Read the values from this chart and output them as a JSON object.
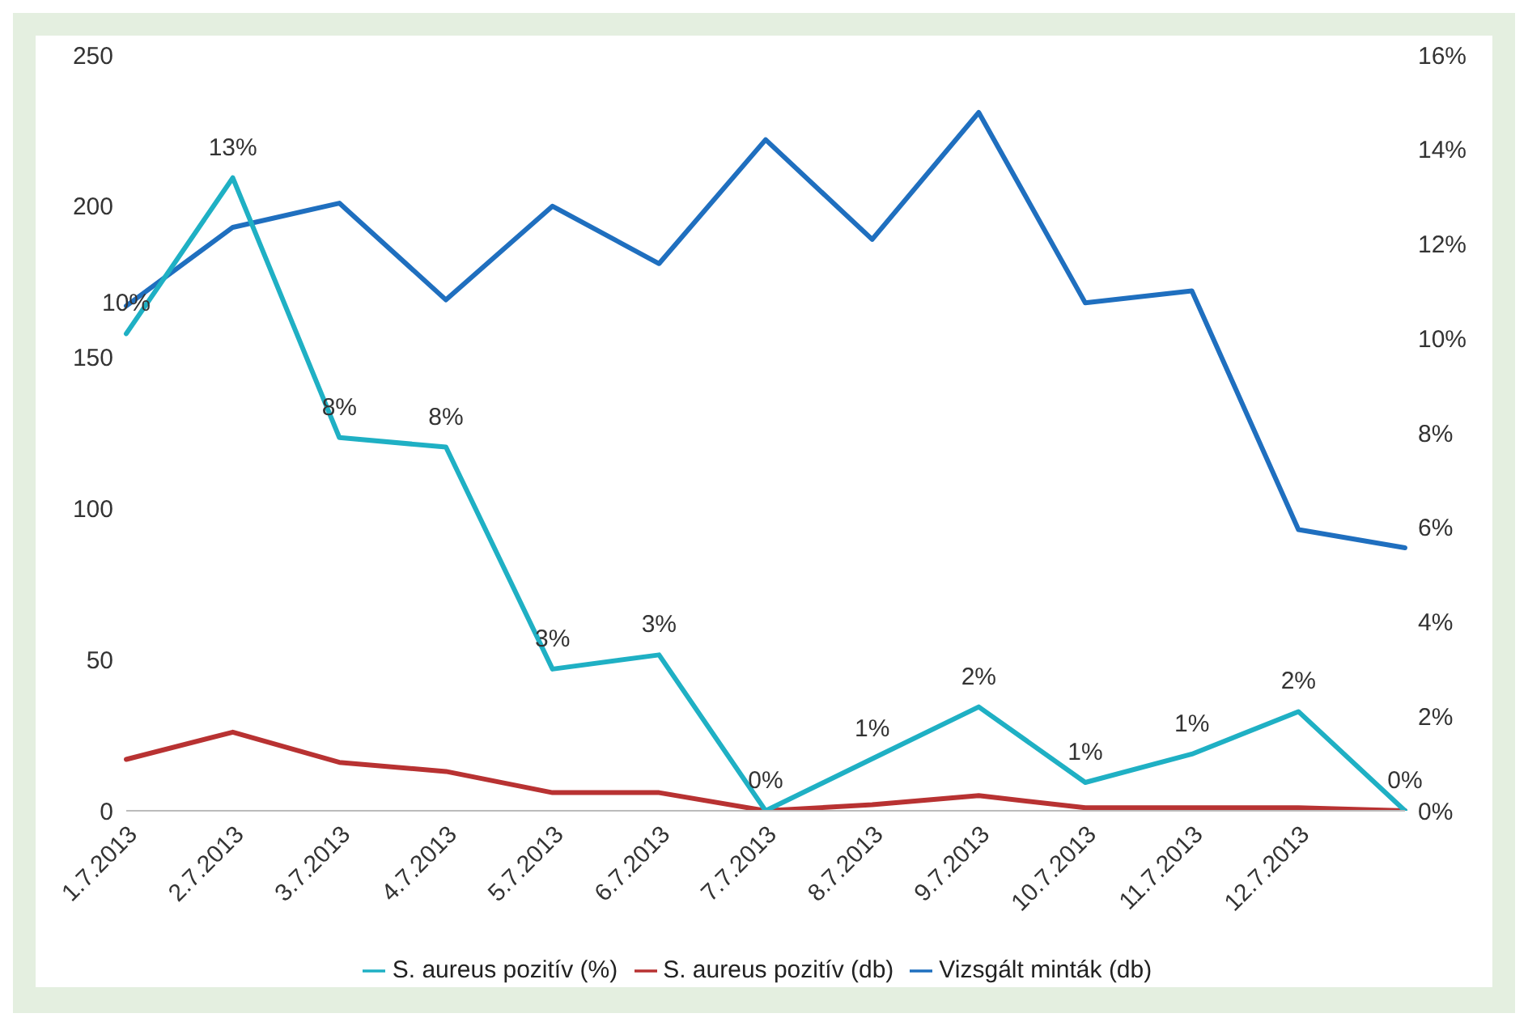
{
  "chart_data": {
    "type": "line",
    "categories": [
      "1.7.2013",
      "2.7.2013",
      "3.7.2013",
      "4.7.2013",
      "5.7.2013",
      "6.7.2013",
      "7.7.2013",
      "8.7.2013",
      "9.7.2013",
      "10.7.2013",
      "11.7.2013",
      "12.7.2013",
      null
    ],
    "series": [
      {
        "name": "Vizsgált minták (db)",
        "color": "#1f6fbf",
        "values": [
          167,
          193,
          201,
          169,
          200,
          181,
          222,
          189,
          231,
          168,
          172,
          93,
          87
        ]
      },
      {
        "name": "S. aureus pozitív (db)",
        "color": "#b83232",
        "values": [
          17,
          26,
          16,
          13,
          6,
          6,
          0,
          2,
          5,
          1,
          1,
          1,
          0
        ]
      },
      {
        "name": "S. aureus pozitív (%)",
        "color": "#1fb0c4",
        "axis": "y2",
        "values": [
          10.1,
          13.4,
          7.9,
          7.7,
          3.0,
          3.3,
          0,
          1.1,
          2.2,
          0.6,
          1.2,
          2.1,
          0
        ],
        "value_labels": [
          "10%",
          "13%",
          "8%",
          "8%",
          "3%",
          "3%",
          "0%",
          "1%",
          "2%",
          "1%",
          "1%",
          "2%",
          "0%"
        ]
      }
    ],
    "ylim": [
      0,
      250
    ],
    "yticks": [
      0,
      50,
      100,
      150,
      200,
      250
    ],
    "y2lim": [
      0,
      16
    ],
    "y2ticks": [
      {
        "value": 0,
        "label": "0%"
      },
      {
        "value": 2,
        "label": "2%"
      },
      {
        "value": 4,
        "label": "4%"
      },
      {
        "value": 6,
        "label": "6%"
      },
      {
        "value": 8,
        "label": "8%"
      },
      {
        "value": 10,
        "label": "10%"
      },
      {
        "value": 12,
        "label": "12%"
      },
      {
        "value": 14,
        "label": "14%"
      },
      {
        "value": 16,
        "label": "16%"
      }
    ],
    "grid": false,
    "legend": "bottom",
    "marker": "none",
    "line_style": "solid"
  }
}
